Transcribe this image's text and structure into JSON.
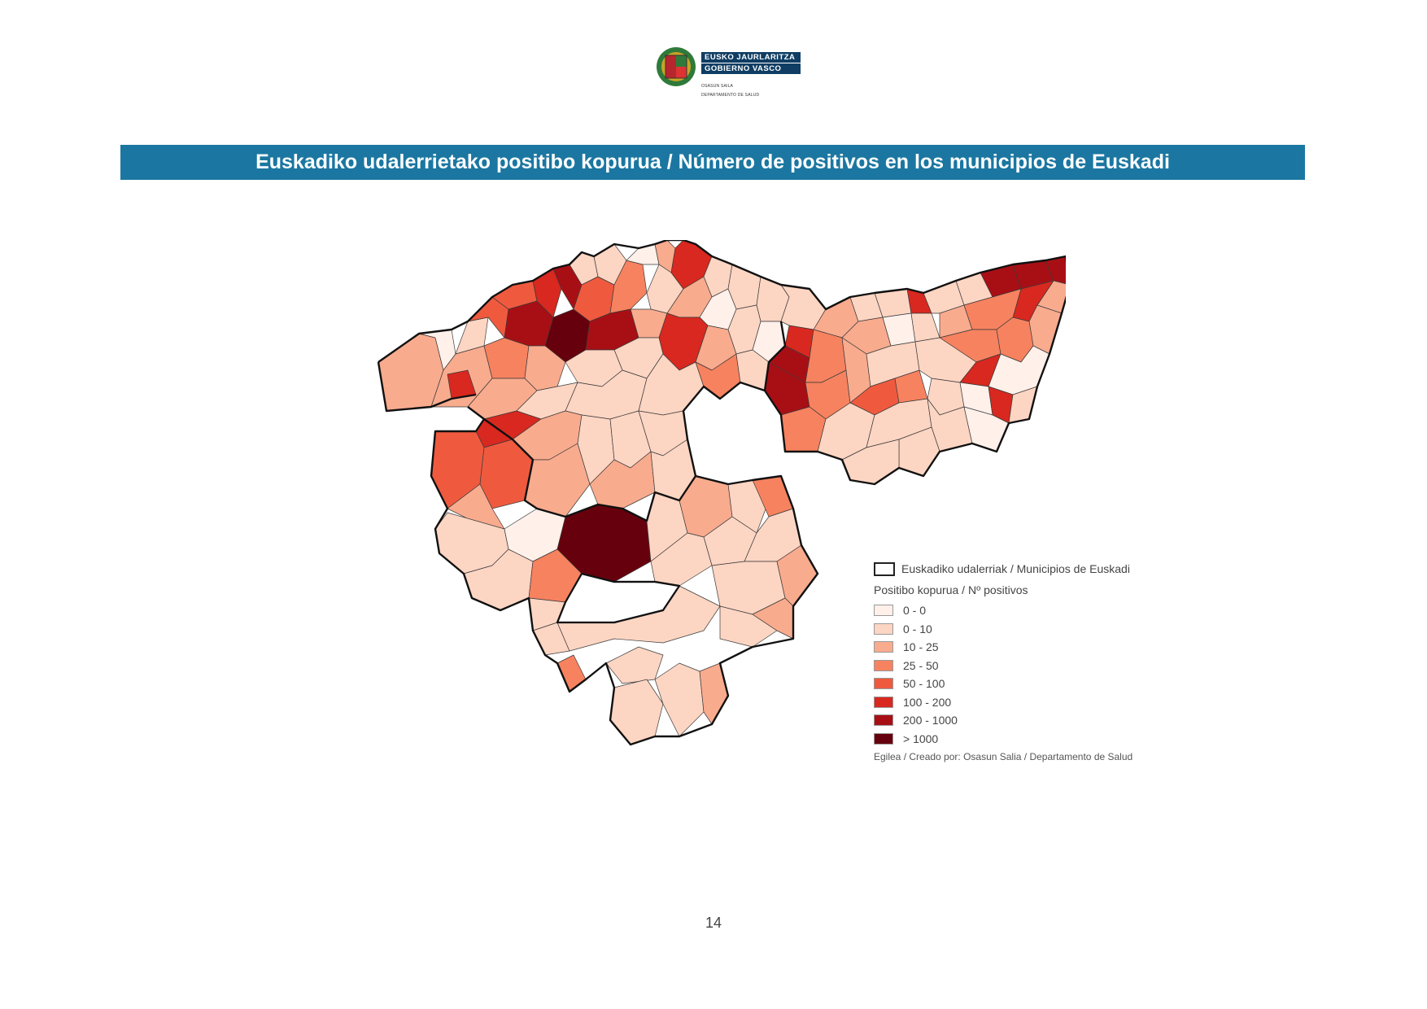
{
  "logo": {
    "line1": "EUSKO JAURLARITZA",
    "line2": "GOBIERNO VASCO",
    "sub1": "OSASUN SAILA",
    "sub2": "DEPARTAMENTO DE SALUD"
  },
  "title": "Euskadiko udalerrietako positibo kopurua / Número de positivos en los municipios de Euskadi",
  "legend": {
    "boundary_label": "Euskadiko udalerriak / Municipios de Euskadi",
    "title": "Positibo kopurua / Nº positivos",
    "classes": [
      {
        "label": "0 - 0",
        "color": "#fff0ea"
      },
      {
        "label": "0 - 10",
        "color": "#fdd5c3"
      },
      {
        "label": "10 - 25",
        "color": "#f9ab8e"
      },
      {
        "label": "25 - 50",
        "color": "#f7825f"
      },
      {
        "label": "50 - 100",
        "color": "#ef5a3f"
      },
      {
        "label": "100 - 200",
        "color": "#d8281f"
      },
      {
        "label": "200 - 1000",
        "color": "#a80f15"
      },
      {
        "label": "> 1000",
        "color": "#66000c"
      }
    ],
    "credit": "Egilea / Creado por: Osasun Salia / Departamento de Salud"
  },
  "page_number": "14"
}
